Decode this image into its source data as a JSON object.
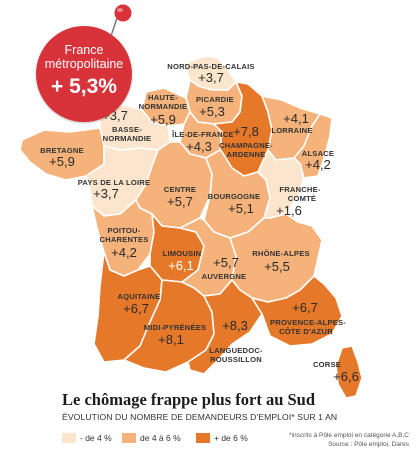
{
  "badge": {
    "line1": "France",
    "line2": "métropolitaine",
    "value": "+ 5,3%"
  },
  "colors": {
    "low": "#fbe5cc",
    "mid": "#f5b27a",
    "high": "#e6782a",
    "badge": "#d8323a"
  },
  "regions": {
    "npdc": {
      "name": "NORD-PAS-DE-CALAIS",
      "value": "+3,7",
      "category": "low"
    },
    "picardie": {
      "name": "PICARDIE",
      "value": "+5,3",
      "category": "mid"
    },
    "hnorm": {
      "name1": "HAUTE-",
      "name2": "NORMANDIE",
      "value": "+5,9",
      "category": "mid"
    },
    "bnorm": {
      "name1": "BASSE-",
      "name2": "NORMANDIE",
      "value": "+3,7",
      "category": "low"
    },
    "idf": {
      "name": "ÎLE-DE-FRANCE",
      "value": "+4,3",
      "category": "mid"
    },
    "champ": {
      "name1": "CHAMPAGNE-",
      "name2": "ARDENNE",
      "value": "+7,8",
      "category": "high"
    },
    "lorraine": {
      "name": "LORRAINE",
      "value": "+4,1",
      "category": "mid"
    },
    "alsace": {
      "name": "ALSACE",
      "value": "+4,2",
      "category": "mid"
    },
    "bretagne": {
      "name": "BRETAGNE",
      "value": "+5,9",
      "category": "mid"
    },
    "pdl": {
      "name": "PAYS DE LA LOIRE",
      "value": "+3,7",
      "category": "low"
    },
    "centre": {
      "name": "CENTRE",
      "value": "+5,7",
      "category": "mid"
    },
    "bourgogne": {
      "name": "BOURGOGNE",
      "value": "+5,1",
      "category": "mid"
    },
    "fc": {
      "name1": "FRANCHE-",
      "name2": "COMTÉ",
      "value": "+1,6",
      "category": "low"
    },
    "poitou": {
      "name1": "POITOU-",
      "name2": "CHARENTES",
      "value": "+4,2",
      "category": "mid"
    },
    "limousin": {
      "name": "LIMOUSIN",
      "value": "+6,1",
      "category": "high"
    },
    "auvergne": {
      "name": "AUVERGNE",
      "value": "+5,7",
      "category": "mid"
    },
    "rhone": {
      "name": "RHÔNE-ALPES",
      "value": "+5,5",
      "category": "mid"
    },
    "aquitaine": {
      "name": "AQUITAINE",
      "value": "+6,7",
      "category": "high"
    },
    "mp": {
      "name": "MIDI-PYRÉNÉES",
      "value": "+8,1",
      "category": "high"
    },
    "lr": {
      "name1": "LANGUEDOC-",
      "name2": "ROUSSILLON",
      "value": "+8,3",
      "category": "high"
    },
    "paca": {
      "name1": "PROVENCE-ALPES-",
      "name2": "CÔTE D'AZUR",
      "value": "+6,7",
      "category": "high"
    },
    "corse": {
      "name": "CORSE",
      "value": "+6,6",
      "category": "high"
    }
  },
  "title": "Le chômage frappe plus fort au Sud",
  "subtitle": "ÉVOLUTION DU NOMBRE DE DEMANDEURS D'EMPLOI* SUR 1 AN",
  "legend": [
    {
      "label": "- de 4 %",
      "category": "low"
    },
    {
      "label": "de 4 à 6 %",
      "category": "mid"
    },
    {
      "label": "+ de 6 %",
      "category": "high"
    }
  ],
  "note": {
    "line1": "*inscrits à Pôle emploi en catégorie A,B,C",
    "line2": "Source : Pôle emploi, Dares"
  }
}
